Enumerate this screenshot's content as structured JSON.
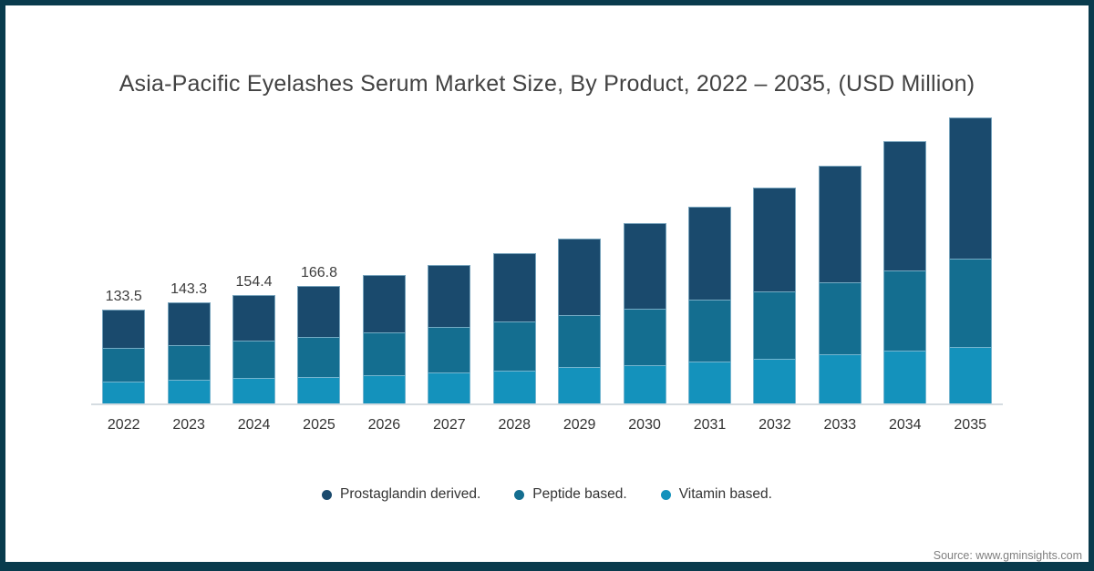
{
  "title": "Asia-Pacific Eyelashes Serum Market Size, By Product, 2022 – 2035, (USD Million)",
  "source": "Source: www.gminsights.com",
  "colors": {
    "frame": "#093b4d",
    "prostaglandin": "#1a4a6d",
    "peptide": "#146e90",
    "vitamin": "#1492bc",
    "axis_line": "#d5dce1",
    "title_text": "#424242",
    "bar_label_text": "#3d3d3d",
    "axis_label_text": "#333333",
    "legend_text": "#333333",
    "source_text": "#7f7f7f"
  },
  "chart_data": {
    "type": "bar",
    "stacked": true,
    "title": "Asia-Pacific Eyelashes Serum Market Size, By Product, 2022 – 2035, (USD Million)",
    "xlabel": "",
    "ylabel": "USD Million",
    "ylim": [
      0,
      440
    ],
    "grid": false,
    "legend_position": "bottom",
    "categories": [
      "2022",
      "2023",
      "2024",
      "2025",
      "2026",
      "2027",
      "2028",
      "2029",
      "2030",
      "2031",
      "2032",
      "2033",
      "2034",
      "2035"
    ],
    "series": [
      {
        "name": "Prostaglandin derived.",
        "color_key": "prostaglandin",
        "stack_position": "top",
        "values": [
          54.5,
          60.3,
          65.5,
          72.1,
          81.5,
          88.3,
          97.0,
          108.6,
          120.6,
          131.9,
          147.4,
          165.5,
          183.2,
          201.3
        ]
      },
      {
        "name": "Peptide based.",
        "color_key": "peptide",
        "stack_position": "middle",
        "values": [
          47.5,
          49.1,
          53.2,
          56.7,
          60.3,
          64.7,
          69.8,
          73.7,
          80.2,
          88.4,
          96.1,
          102.5,
          114.7,
          124.5
        ]
      },
      {
        "name": "Vitamin based.",
        "color_key": "vitamin",
        "stack_position": "bottom",
        "values": [
          31.5,
          33.9,
          35.7,
          38.0,
          40.3,
          44.2,
          46.8,
          51.5,
          55.0,
          59.2,
          63.6,
          70.1,
          74.7,
          80.8
        ]
      }
    ],
    "bar_labels": [
      "133.5",
      "143.3",
      "154.4",
      "166.8",
      null,
      null,
      null,
      null,
      null,
      null,
      null,
      null,
      null,
      null
    ],
    "totals_estimated": [
      133.5,
      143.3,
      154.4,
      166.8,
      182.1,
      197.2,
      213.6,
      233.8,
      255.8,
      279.5,
      307.1,
      338.1,
      372.6,
      406.6
    ]
  }
}
